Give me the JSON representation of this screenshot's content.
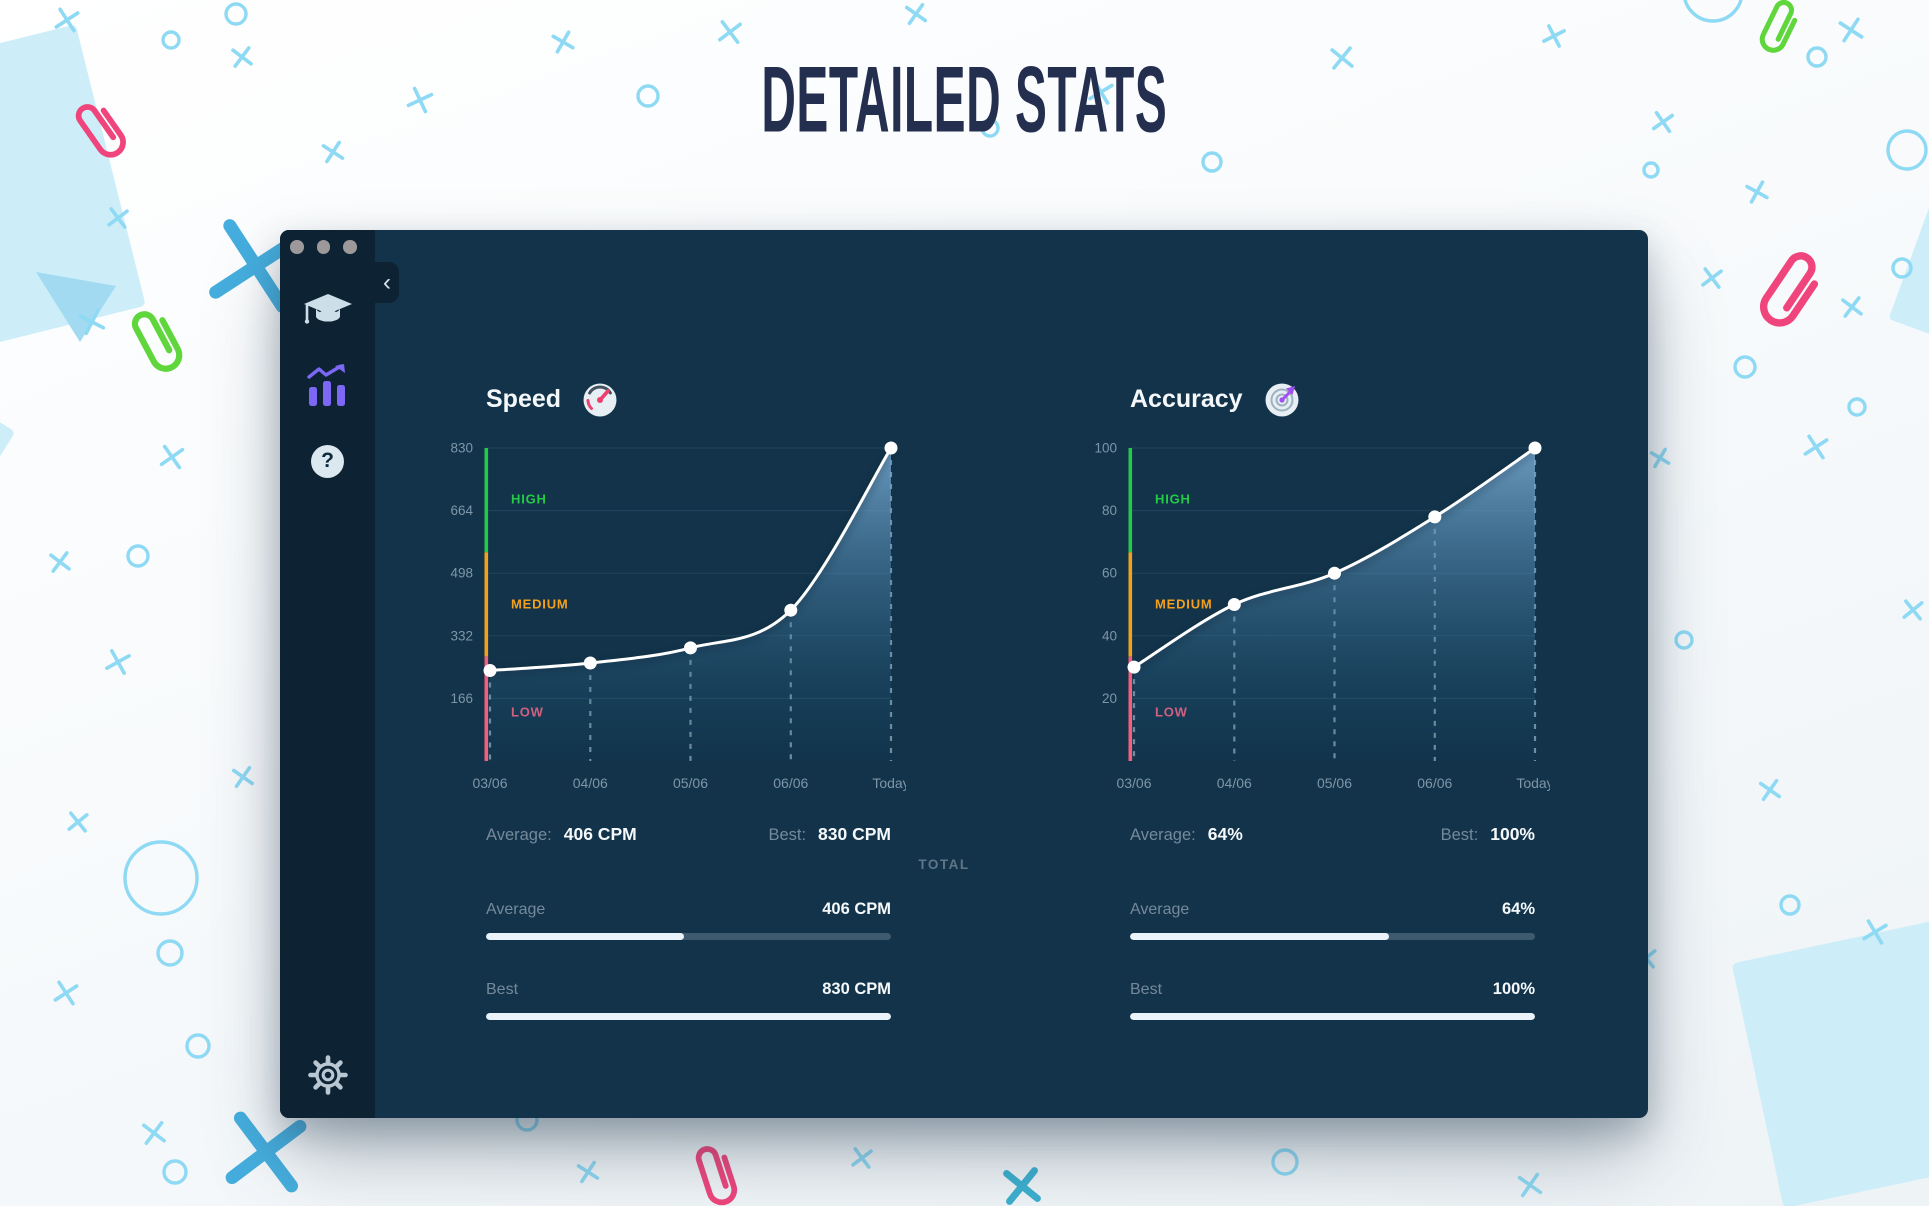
{
  "page_title": "DETAILED STATS",
  "window": {
    "back_button": "‹",
    "sidebar": {
      "help_glyph": "?",
      "items": [
        {
          "label": "lessons",
          "icon": "graduation-cap"
        },
        {
          "label": "stats",
          "icon": "stats-chart"
        },
        {
          "label": "help",
          "icon": "question-mark"
        },
        {
          "label": "settings",
          "icon": "gear"
        }
      ]
    }
  },
  "total_label": "TOTAL",
  "panels": [
    {
      "title": "Speed",
      "icon": "speedometer",
      "summary": {
        "average_label": "Average:",
        "average_value": "406 CPM",
        "best_label": "Best:",
        "best_value": "830 CPM"
      },
      "bars": [
        {
          "label": "Average",
          "value": "406 CPM",
          "percent": 49
        },
        {
          "label": "Best",
          "value": "830 CPM",
          "percent": 100
        }
      ]
    },
    {
      "title": "Accuracy",
      "icon": "target",
      "summary": {
        "average_label": "Average:",
        "average_value": "64%",
        "best_label": "Best:",
        "best_value": "100%"
      },
      "bars": [
        {
          "label": "Average",
          "value": "64%",
          "percent": 64
        },
        {
          "label": "Best",
          "value": "100%",
          "percent": 100
        }
      ]
    }
  ],
  "chart_data": [
    {
      "type": "area",
      "title": "Speed",
      "ylabel": "CPM",
      "x": [
        "03/06",
        "04/06",
        "05/06",
        "06/06",
        "Today"
      ],
      "values": [
        240,
        260,
        300,
        400,
        830
      ],
      "ymax": 830,
      "ylim": [
        0,
        830
      ],
      "yticks": [
        830,
        664,
        498,
        332,
        166
      ],
      "zones": [
        {
          "label": "HIGH",
          "color": "#23ca46"
        },
        {
          "label": "MEDIUM",
          "color": "#f2a01e"
        },
        {
          "label": "LOW",
          "color": "#f45f7d"
        }
      ],
      "grid": true,
      "legend_position": "none",
      "average": 406,
      "best": 830
    },
    {
      "type": "area",
      "title": "Accuracy",
      "ylabel": "%",
      "x": [
        "03/06",
        "04/06",
        "05/06",
        "06/06",
        "Today"
      ],
      "values": [
        30,
        50,
        60,
        78,
        100
      ],
      "ymax": 100,
      "ylim": [
        0,
        100
      ],
      "yticks": [
        100,
        80,
        60,
        40,
        20
      ],
      "zones": [
        {
          "label": "HIGH",
          "color": "#23ca46"
        },
        {
          "label": "MEDIUM",
          "color": "#f2a01e"
        },
        {
          "label": "LOW",
          "color": "#f45f7d"
        }
      ],
      "grid": true,
      "legend_position": "none",
      "average": 64,
      "best": 100
    }
  ],
  "colors": {
    "window_bg": "#123349",
    "sidebar_bg": "#0d2334",
    "axis_text": "#7e96a8",
    "gridline": "rgba(150,195,225,0.13)",
    "guide": "rgba(199,221,237,0.55)",
    "line": "#ffffff",
    "area_top": "#7db0d8",
    "area_bottom": "#15557e",
    "zone_high": "#23ca46",
    "zone_medium": "#f2a01e",
    "zone_low": "#f0356b",
    "bar_track": "#3d5a6e",
    "bar_fill": "#e9f3f9",
    "accent_purple": "#7c68f5"
  }
}
